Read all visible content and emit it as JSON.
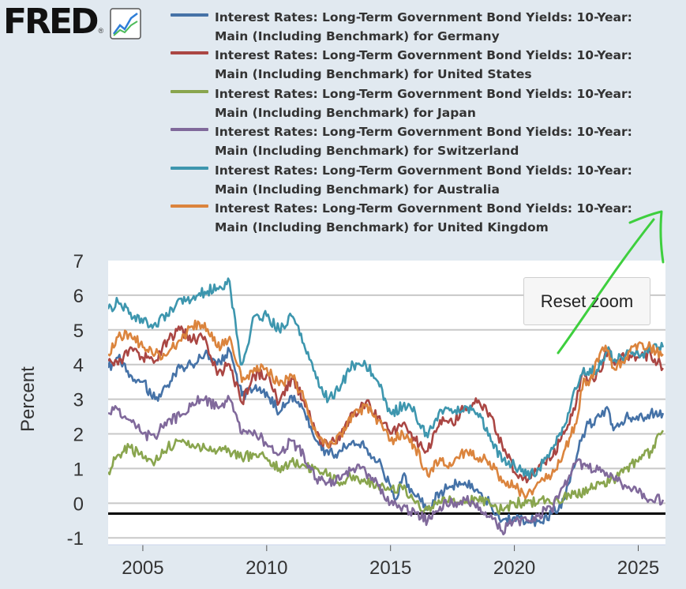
{
  "logo": {
    "text": "FRED",
    "reg": "®",
    "icon": "trend-chart-icon"
  },
  "reset_zoom_label": "Reset zoom",
  "colors": {
    "background": "#e1e9f0",
    "plot_bg": "#ffffff",
    "grid": "#c8c8c8",
    "zero_line": "#000000",
    "annotation": "#3ecf3e"
  },
  "chart_data": {
    "type": "line",
    "ylabel": "Percent",
    "xlim": [
      2003.6,
      2026.1
    ],
    "ylim": [
      -1.2,
      7
    ],
    "yticks": [
      -1,
      0,
      1,
      2,
      3,
      4,
      5,
      6,
      7
    ],
    "xticks": [
      2005,
      2010,
      2015,
      2020,
      2025
    ],
    "reference_line_y": -0.3,
    "grid": true,
    "legend_position": "top",
    "series": [
      {
        "name": "Interest Rates: Long-Term Government Bond Yields: 10-Year: Main (Including Benchmark) for Germany",
        "color": "#4572a7",
        "x": [
          2003.6,
          2004,
          2004.5,
          2005,
          2005.5,
          2006,
          2006.5,
          2007,
          2007.5,
          2008,
          2008.5,
          2008.9,
          2009,
          2009.5,
          2010,
          2010.5,
          2011,
          2011.5,
          2012,
          2012.5,
          2013,
          2013.5,
          2014,
          2014.5,
          2015,
          2015.2,
          2015.5,
          2016,
          2016.5,
          2017,
          2017.5,
          2018,
          2018.5,
          2019,
          2019.5,
          2020,
          2020.5,
          2021,
          2021.5,
          2022,
          2022.3,
          2022.7,
          2023,
          2023.5,
          2023.8,
          2024,
          2024.5,
          2025,
          2025.5,
          2026
        ],
        "y": [
          3.9,
          4.2,
          3.7,
          3.5,
          3.0,
          3.4,
          3.9,
          4.0,
          4.3,
          4.0,
          4.4,
          3.4,
          3.1,
          3.3,
          3.2,
          2.6,
          3.1,
          2.7,
          1.8,
          1.4,
          1.5,
          1.8,
          1.6,
          1.2,
          0.5,
          0.1,
          0.8,
          0.2,
          -0.1,
          0.3,
          0.5,
          0.6,
          0.4,
          0.0,
          -0.5,
          -0.4,
          -0.5,
          -0.5,
          -0.3,
          0.1,
          0.9,
          1.8,
          2.3,
          2.5,
          2.7,
          2.1,
          2.5,
          2.4,
          2.6,
          2.6
        ]
      },
      {
        "name": "Interest Rates: Long-Term Government Bond Yields: 10-Year: Main (Including Benchmark) for United States",
        "color": "#aa4643",
        "x": [
          2003.6,
          2004,
          2004.5,
          2005,
          2005.5,
          2006,
          2006.5,
          2007,
          2007.5,
          2008,
          2008.5,
          2009,
          2009.5,
          2010,
          2010.5,
          2011,
          2011.5,
          2012,
          2012.5,
          2013,
          2013.5,
          2014,
          2014.5,
          2015,
          2015.5,
          2016,
          2016.5,
          2017,
          2017.5,
          2018,
          2018.5,
          2019,
          2019.5,
          2020,
          2020.5,
          2021,
          2021.5,
          2022,
          2022.5,
          2022.8,
          2023,
          2023.5,
          2023.8,
          2024,
          2024.5,
          2025,
          2025.5,
          2026
        ],
        "y": [
          4.1,
          4.0,
          4.5,
          4.2,
          4.1,
          4.7,
          5.0,
          4.7,
          4.8,
          3.7,
          4.0,
          2.9,
          3.7,
          3.7,
          2.9,
          3.6,
          3.0,
          2.0,
          1.6,
          2.0,
          2.6,
          2.9,
          2.5,
          2.0,
          2.3,
          1.8,
          1.5,
          2.4,
          2.3,
          2.8,
          2.9,
          2.6,
          1.7,
          0.9,
          0.6,
          1.1,
          1.3,
          2.0,
          2.9,
          3.9,
          3.5,
          3.8,
          4.5,
          4.1,
          4.3,
          4.2,
          4.3,
          3.9
        ]
      },
      {
        "name": "Interest Rates: Long-Term Government Bond Yields: 10-Year: Main (Including Benchmark) for Japan",
        "color": "#89a54e",
        "x": [
          2003.6,
          2004,
          2004.5,
          2005,
          2005.5,
          2006,
          2006.5,
          2007,
          2007.5,
          2008,
          2008.5,
          2009,
          2009.5,
          2010,
          2010.5,
          2011,
          2011.5,
          2012,
          2012.5,
          2013,
          2013.5,
          2014,
          2014.5,
          2015,
          2015.5,
          2016,
          2016.5,
          2017,
          2017.5,
          2018,
          2018.5,
          2019,
          2019.5,
          2020,
          2020.5,
          2021,
          2021.5,
          2022,
          2022.5,
          2023,
          2023.5,
          2024,
          2024.5,
          2025,
          2025.5,
          2026
        ],
        "y": [
          0.9,
          1.4,
          1.6,
          1.3,
          1.2,
          1.6,
          1.8,
          1.7,
          1.6,
          1.5,
          1.5,
          1.3,
          1.4,
          1.3,
          1.0,
          1.2,
          1.1,
          1.0,
          0.8,
          0.6,
          0.8,
          0.6,
          0.5,
          0.4,
          0.4,
          0.0,
          -0.2,
          0.0,
          0.1,
          0.0,
          0.1,
          0.0,
          -0.2,
          0.0,
          0.0,
          0.1,
          0.0,
          0.2,
          0.2,
          0.4,
          0.6,
          0.7,
          1.0,
          1.2,
          1.5,
          2.1
        ]
      },
      {
        "name": "Interest Rates: Long-Term Government Bond Yields: 10-Year: Main (Including Benchmark) for Switzerland",
        "color": "#80699b",
        "x": [
          2003.6,
          2004,
          2004.5,
          2005,
          2005.5,
          2006,
          2006.5,
          2007,
          2007.5,
          2008,
          2008.5,
          2009,
          2009.5,
          2010,
          2010.5,
          2011,
          2011.5,
          2012,
          2012.5,
          2013,
          2013.5,
          2014,
          2014.5,
          2015,
          2015.5,
          2016,
          2016.5,
          2017,
          2017.5,
          2018,
          2018.5,
          2019,
          2019.5,
          2020,
          2020.5,
          2021,
          2021.5,
          2022,
          2022.5,
          2023,
          2023.5,
          2024,
          2024.5,
          2025,
          2025.5,
          2026
        ],
        "y": [
          2.6,
          2.7,
          2.4,
          2.0,
          1.9,
          2.4,
          2.5,
          2.9,
          3.0,
          2.8,
          3.0,
          2.0,
          2.1,
          1.7,
          1.4,
          1.8,
          1.4,
          0.7,
          0.6,
          0.7,
          1.0,
          0.9,
          0.5,
          0.0,
          -0.1,
          -0.3,
          -0.5,
          -0.1,
          0.0,
          0.1,
          0.0,
          -0.4,
          -0.8,
          -0.5,
          -0.5,
          -0.3,
          -0.2,
          0.5,
          1.2,
          1.0,
          0.9,
          0.7,
          0.5,
          0.3,
          0.1,
          0.1
        ]
      },
      {
        "name": "Interest Rates: Long-Term Government Bond Yields: 10-Year: Main (Including Benchmark) for Australia",
        "color": "#3d96ae",
        "x": [
          2003.6,
          2004,
          2004.5,
          2005,
          2005.5,
          2006,
          2006.5,
          2007,
          2007.5,
          2008,
          2008.5,
          2008.9,
          2009,
          2009.5,
          2010,
          2010.5,
          2011,
          2011.5,
          2012,
          2012.5,
          2013,
          2013.5,
          2014,
          2014.5,
          2015,
          2015.5,
          2016,
          2016.5,
          2017,
          2017.5,
          2018,
          2018.5,
          2019,
          2019.5,
          2020,
          2020.5,
          2021,
          2021.5,
          2022,
          2022.5,
          2022.8,
          2023,
          2023.5,
          2023.8,
          2024,
          2024.5,
          2025,
          2025.5,
          2026
        ],
        "y": [
          5.6,
          5.8,
          5.5,
          5.2,
          5.2,
          5.4,
          5.9,
          5.9,
          6.1,
          6.2,
          6.4,
          4.3,
          4.0,
          5.4,
          5.4,
          5.0,
          5.4,
          4.6,
          3.6,
          3.0,
          3.4,
          4.0,
          4.0,
          3.5,
          2.6,
          2.8,
          2.6,
          1.9,
          2.7,
          2.6,
          2.8,
          2.6,
          2.0,
          1.2,
          1.1,
          0.8,
          1.0,
          1.6,
          2.2,
          3.3,
          3.9,
          3.7,
          4.0,
          4.5,
          4.1,
          4.3,
          4.3,
          4.4,
          4.5
        ]
      },
      {
        "name": "Interest Rates: Long-Term Government Bond Yields: 10-Year: Main (Including Benchmark) for United Kingdom",
        "color": "#db843d",
        "x": [
          2003.6,
          2004,
          2004.5,
          2005,
          2005.5,
          2006,
          2006.5,
          2007,
          2007.5,
          2008,
          2008.5,
          2009,
          2009.5,
          2010,
          2010.5,
          2011,
          2011.5,
          2012,
          2012.5,
          2013,
          2013.5,
          2014,
          2014.5,
          2015,
          2015.5,
          2016,
          2016.5,
          2017,
          2017.5,
          2018,
          2018.5,
          2019,
          2019.5,
          2020,
          2020.5,
          2021,
          2021.5,
          2022,
          2022.5,
          2022.8,
          2023,
          2023.5,
          2023.8,
          2024,
          2024.5,
          2025,
          2025.5,
          2026
        ],
        "y": [
          4.3,
          4.8,
          4.9,
          4.5,
          4.3,
          4.3,
          4.7,
          5.1,
          5.2,
          4.5,
          4.8,
          3.5,
          3.9,
          3.9,
          3.4,
          3.7,
          3.0,
          2.0,
          1.6,
          2.0,
          2.5,
          2.8,
          2.4,
          1.8,
          2.0,
          1.6,
          0.8,
          1.3,
          1.1,
          1.5,
          1.3,
          1.2,
          0.6,
          0.5,
          0.2,
          0.6,
          0.8,
          1.5,
          2.3,
          3.6,
          3.4,
          4.4,
          4.4,
          3.9,
          4.2,
          4.6,
          4.5,
          4.3
        ]
      }
    ]
  }
}
